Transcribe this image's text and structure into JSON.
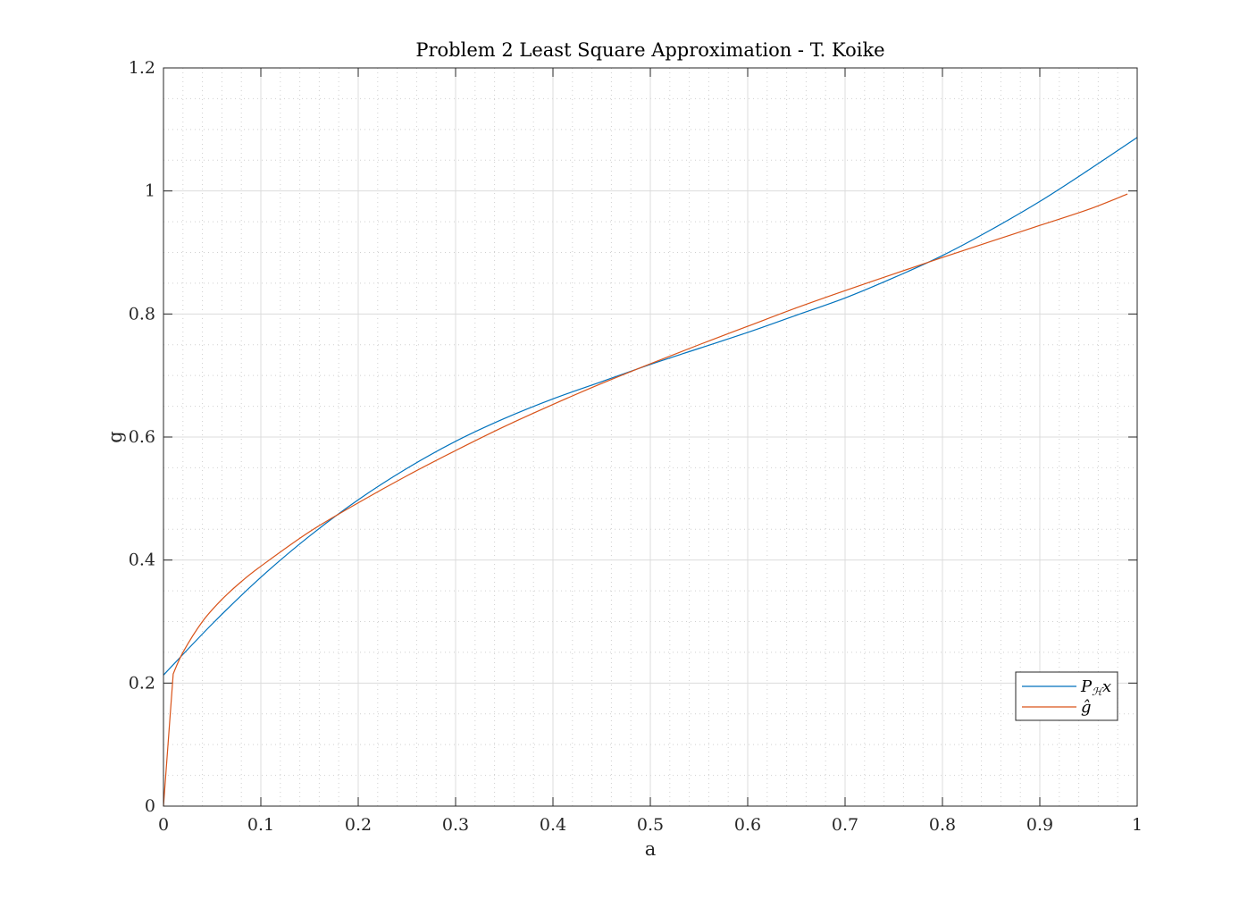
{
  "chart_data": {
    "type": "line",
    "title": "Problem 2 Least Square Approximation - T. Koike",
    "xlabel": "a",
    "ylabel": "g",
    "xlim": [
      0,
      1
    ],
    "ylim": [
      0,
      1.2
    ],
    "xticks": [
      "0",
      "0.1",
      "0.2",
      "0.3",
      "0.4",
      "0.5",
      "0.6",
      "0.7",
      "0.8",
      "0.9",
      "1"
    ],
    "yticks": [
      "0",
      "0.2",
      "0.4",
      "0.6",
      "0.8",
      "1",
      "1.2"
    ],
    "grid": "major and minor",
    "legend_position": "bottom-right",
    "series": [
      {
        "name": "P_H x",
        "color": "#0072BD",
        "x": [
          0,
          0.05,
          0.1,
          0.15,
          0.2,
          0.25,
          0.3,
          0.35,
          0.4,
          0.45,
          0.5,
          0.55,
          0.6,
          0.65,
          0.7,
          0.75,
          0.8,
          0.85,
          0.9,
          0.95,
          1.0
        ],
        "y": [
          0.213,
          0.296,
          0.372,
          0.439,
          0.498,
          0.549,
          0.593,
          0.63,
          0.662,
          0.69,
          0.718,
          0.744,
          0.77,
          0.798,
          0.826,
          0.859,
          0.895,
          0.937,
          0.983,
          1.034,
          1.087
        ]
      },
      {
        "name": "ĝ",
        "color": "#D95319",
        "x": [
          0,
          0.01,
          0.02,
          0.04,
          0.06,
          0.08,
          0.1,
          0.15,
          0.2,
          0.25,
          0.3,
          0.35,
          0.4,
          0.45,
          0.5,
          0.55,
          0.6,
          0.65,
          0.7,
          0.75,
          0.8,
          0.85,
          0.9,
          0.95,
          0.99
        ],
        "y": [
          0,
          0.215,
          0.25,
          0.3,
          0.336,
          0.365,
          0.39,
          0.446,
          0.493,
          0.537,
          0.578,
          0.617,
          0.653,
          0.687,
          0.719,
          0.75,
          0.78,
          0.81,
          0.838,
          0.865,
          0.892,
          0.918,
          0.944,
          0.97,
          0.995
        ]
      }
    ]
  }
}
